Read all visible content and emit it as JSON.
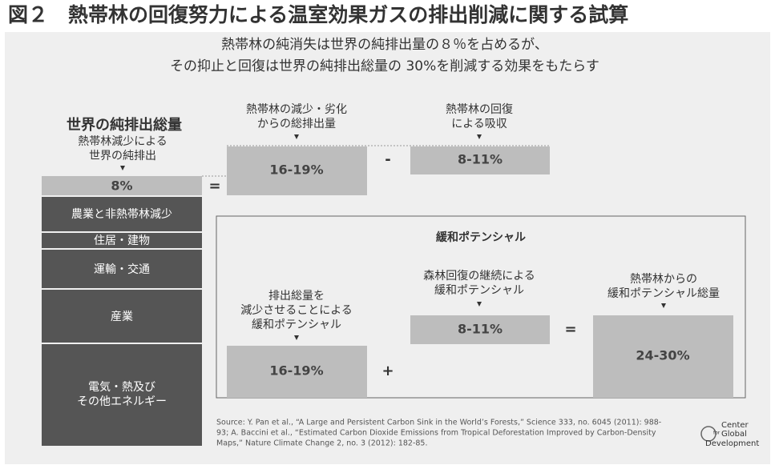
{
  "header": {
    "title": "図２　熱帯林の回復努力による温室効果ガスの排出削減に関する試算",
    "subtitle": [
      "熱帯林の純消失は世界の純排出量の８％を占めるが、",
      "その抑止と回復は世界の純排出総量の 30%を削減する効果をもたらす"
    ]
  },
  "world": {
    "heading": "世界の純排出総量",
    "label": [
      "熱帯林減少による",
      "世界の純排出"
    ],
    "share": "8%",
    "sectors": [
      "農業と非熱帯林減少",
      "住居・建物",
      "運輸・交通",
      "産業",
      [
        "電気・熱及び",
        "その他エネルギー"
      ]
    ]
  },
  "equation": {
    "equals": "=",
    "minus": "-",
    "gross": {
      "label": [
        "熱帯林の減少・劣化",
        "からの総排出量"
      ],
      "value": "16-19%"
    },
    "absorption": {
      "label": [
        "熱帯林の回復",
        "による吸収"
      ],
      "value": "8-11%"
    }
  },
  "mitigation": {
    "title": "緩和ポテンシャル",
    "plus": "+",
    "equals": "=",
    "reduction": {
      "label": [
        "排出総量を",
        "減少させることによる",
        "緩和ポテンシャル"
      ],
      "value": "16-19%"
    },
    "restoration": {
      "label": [
        "森林回復の継続による",
        "緩和ポテンシャル"
      ],
      "value": "8-11%"
    },
    "total": {
      "label": [
        "熱帯林からの",
        "緩和ポテンシャル総量"
      ],
      "value": "24-30%"
    }
  },
  "source": [
    "Source: Y. Pan et al., “A Large and Persistent Carbon Sink in the World’s Forests,” Science 333, no. 6045 (2011): 988-",
    "93; A. Baccini et al., “Estimated Carbon Dioxide Emissions from Tropical Deforestation Improved by Carbon-Density",
    "Maps,” Nature Climate Change 2, no. 3 (2012): 182-85."
  ],
  "logo": [
    "Center",
    "for",
    "Global",
    "Development"
  ]
}
